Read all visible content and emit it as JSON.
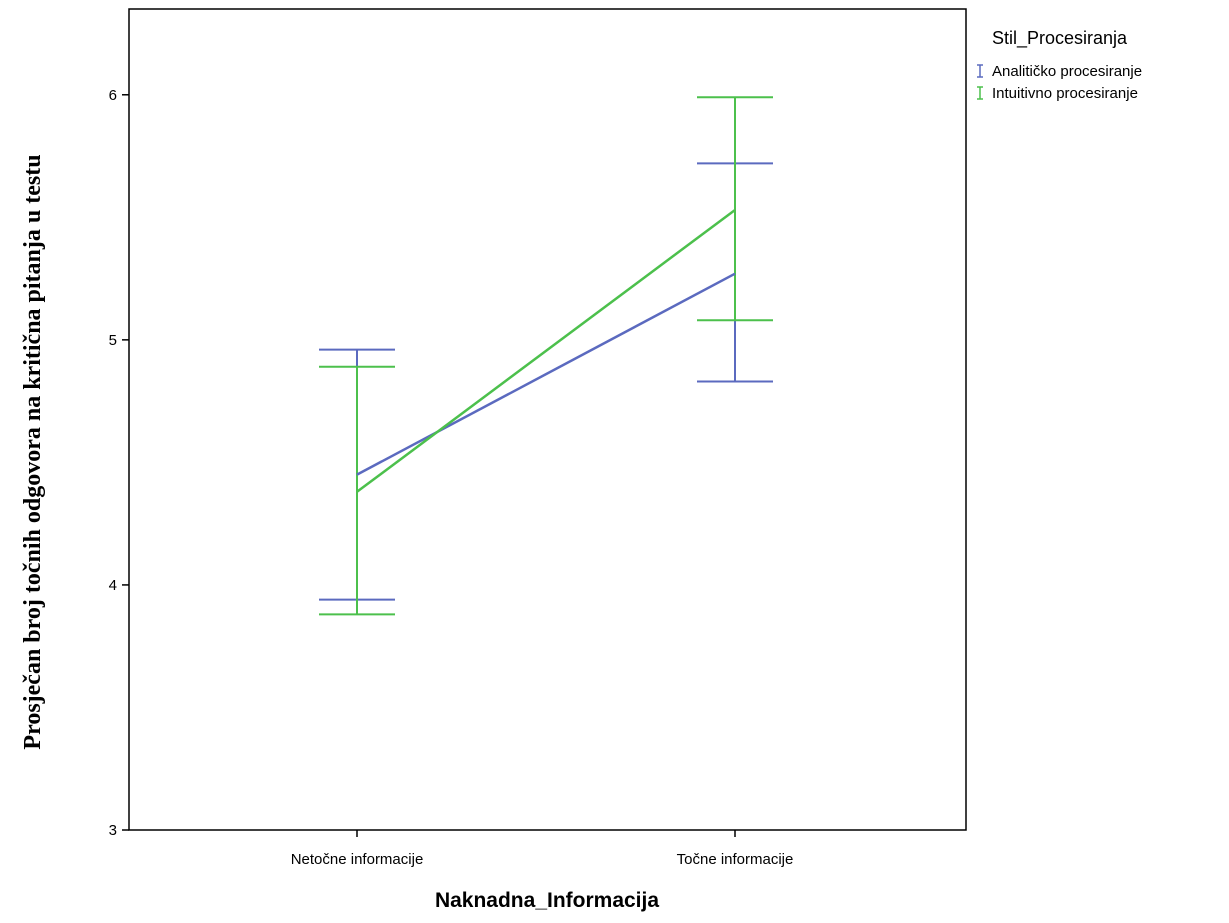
{
  "chart_data": {
    "type": "line",
    "x_axis_title": "Naknadna_Informacija",
    "y_axis_title": "Prosječan broj točnih odgovora na kritična pitanja u testu",
    "categories": [
      "Netočne informacije",
      "Točne informacije"
    ],
    "ylim": [
      3,
      6.35
    ],
    "yticks": [
      3,
      4,
      5,
      6
    ],
    "grid": false,
    "legend": {
      "title": "Stil_Procesiranja",
      "placement": "top-right, outside plot"
    },
    "series": [
      {
        "name": "Analitičko procesiranje",
        "color": "#5b6abf",
        "values": [
          4.45,
          5.27
        ],
        "error_low": [
          3.94,
          4.83
        ],
        "error_high": [
          4.96,
          5.72
        ]
      },
      {
        "name": "Intuitivno procesiranje",
        "color": "#4cc04c",
        "values": [
          4.38,
          5.53
        ],
        "error_low": [
          3.88,
          5.08
        ],
        "error_high": [
          4.89,
          5.99
        ]
      }
    ]
  }
}
